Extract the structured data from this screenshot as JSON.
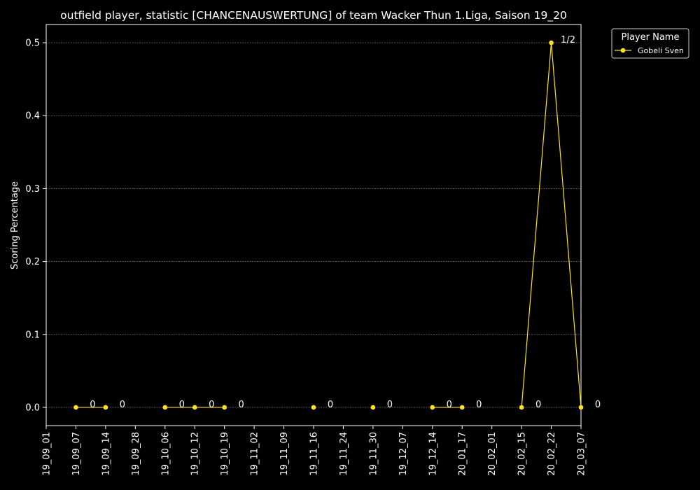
{
  "chart_data": {
    "type": "line",
    "title": "outfield player, statistic [CHANCENAUSWERTUNG] of team Wacker Thun 1.Liga, Saison 19_20",
    "xlabel": "",
    "ylabel": "Scoring Percentage",
    "ylim": [
      -0.025,
      0.525
    ],
    "yticks": [
      "0.0",
      "0.1",
      "0.2",
      "0.3",
      "0.4",
      "0.5"
    ],
    "categories": [
      "19_09_01",
      "19_09_07",
      "19_09_14",
      "19_09_28",
      "19_10_06",
      "19_10_12",
      "19_10_19",
      "19_11_02",
      "19_11_09",
      "19_11_16",
      "19_11_24",
      "19_11_30",
      "19_12_07",
      "19_12_14",
      "20_01_17",
      "20_02_01",
      "20_02_15",
      "20_02_22",
      "20_03_07"
    ],
    "grid": "horizontal-dashed",
    "legend": {
      "title": "Player Name",
      "placement": "outside-top-right"
    },
    "series": [
      {
        "name": "Gobeli Sven",
        "color": "#ffe41c",
        "points": [
          {
            "x": "19_09_07",
            "y": 0,
            "label": "0",
            "connected": false
          },
          {
            "x": "19_09_14",
            "y": 0,
            "label": "0",
            "connected": true
          },
          {
            "x": "19_10_06",
            "y": 0,
            "label": "0",
            "connected": false
          },
          {
            "x": "19_10_12",
            "y": 0,
            "label": "0",
            "connected": true
          },
          {
            "x": "19_10_19",
            "y": 0,
            "label": "0",
            "connected": true
          },
          {
            "x": "19_11_16",
            "y": 0,
            "label": "0",
            "connected": false
          },
          {
            "x": "19_11_30",
            "y": 0,
            "label": "0",
            "connected": false
          },
          {
            "x": "19_12_14",
            "y": 0,
            "label": "0",
            "connected": false
          },
          {
            "x": "20_01_17",
            "y": 0,
            "label": "0",
            "connected": true
          },
          {
            "x": "20_02_15",
            "y": 0,
            "label": "0",
            "connected": false
          },
          {
            "x": "20_02_22",
            "y": 0.5,
            "label": "1/2",
            "connected": true
          },
          {
            "x": "20_03_07",
            "y": 0,
            "label": "0",
            "connected": true
          }
        ]
      }
    ]
  }
}
